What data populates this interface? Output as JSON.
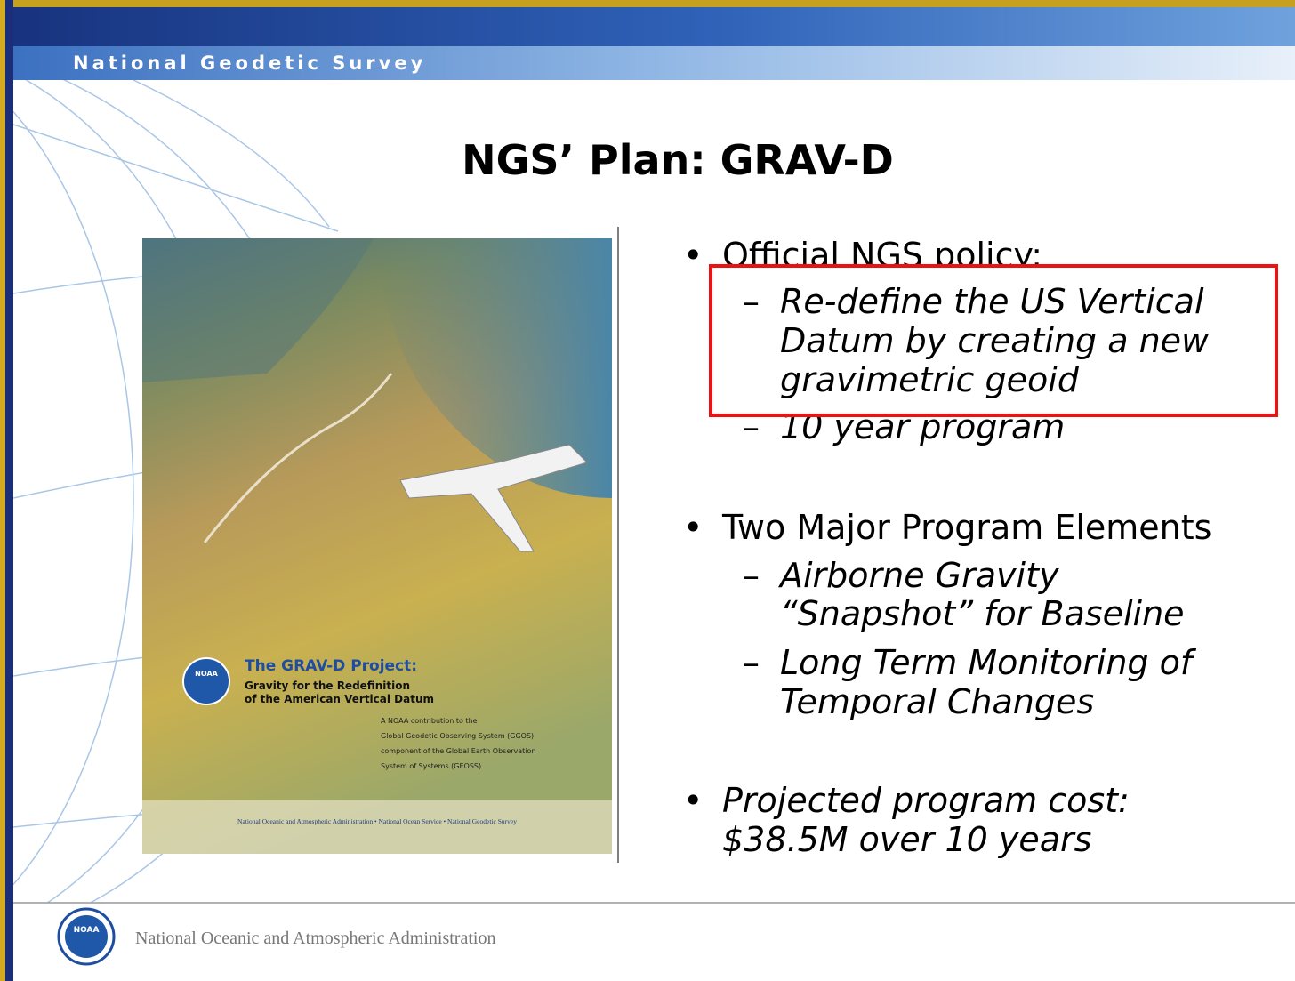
{
  "header": {
    "org": "National Geodetic Survey"
  },
  "title": "NGS’ Plan: GRAV-D",
  "cover": {
    "title": "The GRAV-D Project:",
    "subtitle": [
      "Gravity for the Redefinition",
      "of the American Vertical Datum"
    ],
    "note": [
      "A NOAA contribution to the",
      "Global Geodetic Observing System (GGOS)",
      "component of the Global Earth Observation",
      "System of Systems (GEOSS)"
    ],
    "footer": "National Oceanic and Atmospheric Administration  •  National Ocean Service  •  National Geodetic Survey",
    "logo": "NOAA"
  },
  "bullets": [
    {
      "text": "Official NGS policy:",
      "items": [
        {
          "lines": [
            "Re-define the US Vertical",
            "Datum by creating a new",
            "gravimetric geoid"
          ]
        },
        {
          "lines": [
            "10 year program"
          ]
        }
      ]
    },
    {
      "text": "Two Major Program Elements",
      "items": [
        {
          "lines": [
            "Airborne Gravity",
            "“Snapshot” for Baseline"
          ]
        },
        {
          "lines": [
            "Long Term Monitoring of",
            "Temporal Changes"
          ]
        }
      ]
    },
    {
      "lines": [
        "Projected program cost:",
        "$38.5M over 10 years"
      ]
    }
  ],
  "footer": {
    "logo": "NOAA",
    "text": "National Oceanic and Atmospheric Administration"
  }
}
